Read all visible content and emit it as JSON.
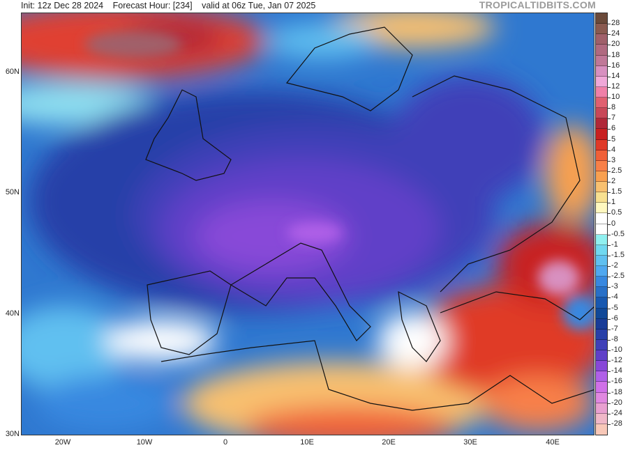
{
  "header": {
    "init": "Init: 12z Dec 28 2024",
    "forecast_hour": "Forecast Hour: [234]",
    "valid": "valid at 06z Tue, Jan 07 2025",
    "brand": "TROPICALTIDBITS.COM"
  },
  "map": {
    "lat_labels": [
      "60N",
      "50N",
      "40N",
      "30N"
    ],
    "lon_labels": [
      "20W",
      "10W",
      "0",
      "10E",
      "20E",
      "30E",
      "40E"
    ]
  },
  "colorbar": {
    "labels": [
      "28",
      "24",
      "20",
      "18",
      "16",
      "14",
      "12",
      "10",
      "8",
      "7",
      "6",
      "5",
      "4",
      "3",
      "2.5",
      "2",
      "1.5",
      "1",
      "0.5",
      "0",
      "-0.5",
      "-1",
      "-1.5",
      "-2",
      "-2.5",
      "-3",
      "-4",
      "-5",
      "-6",
      "-7",
      "-8",
      "-10",
      "-12",
      "-14",
      "-16",
      "-18",
      "-20",
      "-24",
      "-28"
    ],
    "colors": [
      "#6b4a3a",
      "#8a5a50",
      "#a0606a",
      "#b06a80",
      "#c07898",
      "#d890c0",
      "#f0a8d8",
      "#f080a8",
      "#e06070",
      "#c84858",
      "#b02838",
      "#c82020",
      "#e03a28",
      "#f06038",
      "#f88048",
      "#f8a050",
      "#f8c070",
      "#f8e090",
      "#fff8c0",
      "#ffffff",
      "#ffffff",
      "#90f0f0",
      "#70d8f0",
      "#60c0f0",
      "#50a8f0",
      "#3888e0",
      "#2870c8",
      "#1858b0",
      "#104898",
      "#183c98",
      "#2840a8",
      "#4040b8",
      "#6040c8",
      "#8848d8",
      "#b060e8",
      "#d070e8",
      "#e088e0",
      "#e8a0d0",
      "#f0b8c8",
      "#f8c8b8"
    ]
  }
}
